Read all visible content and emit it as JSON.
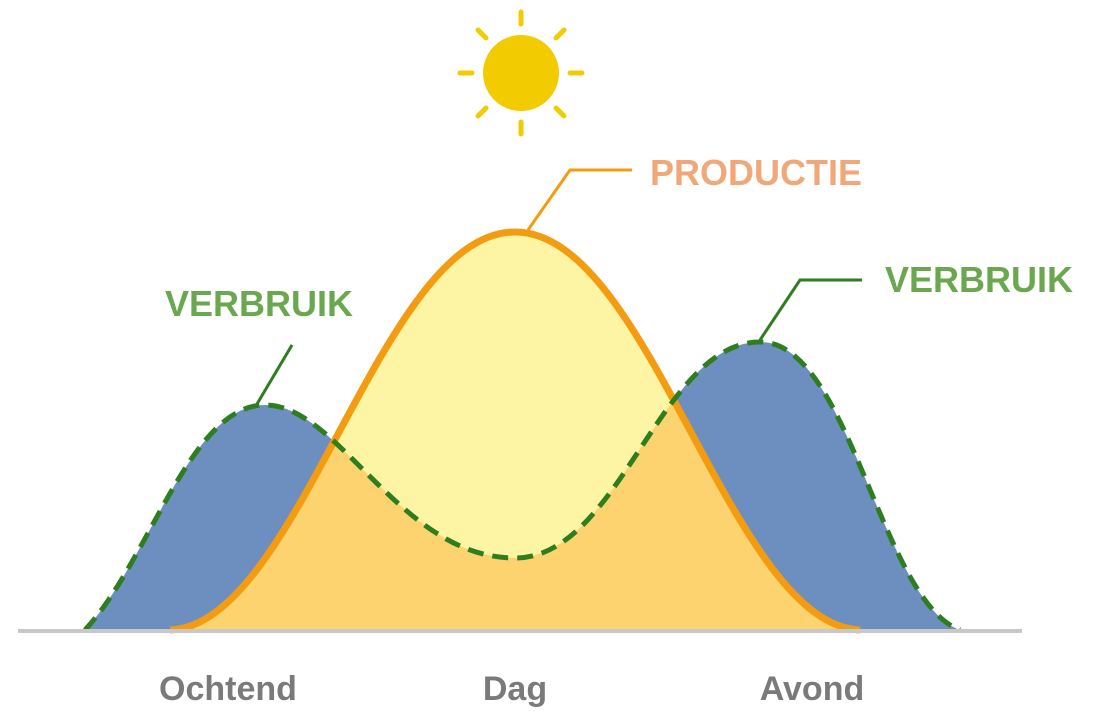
{
  "labels": {
    "production": "PRODUCTIE",
    "consumption_left": "VERBRUIK",
    "consumption_right": "VERBRUIK"
  },
  "periods": [
    "Ochtend",
    "Dag",
    "Avond"
  ]
}
